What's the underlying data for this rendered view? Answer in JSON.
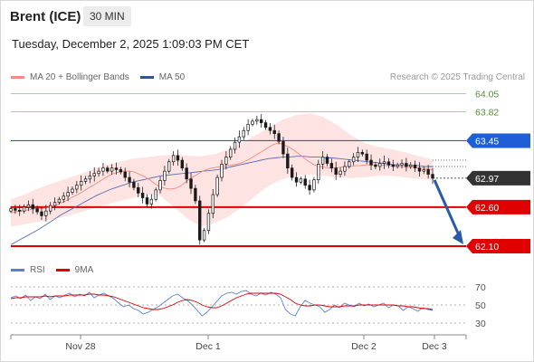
{
  "header": {
    "instrument": "Brent (ICE)",
    "timeframe": "30 MIN",
    "timestamp": "Tuesday, December 2, 2025 1:09:03 PM CET",
    "copyright": "Research © 2025 Trading Central"
  },
  "legend": {
    "items": [
      {
        "label": "MA 20 + Bollinger Bands",
        "color": "#f28b82"
      },
      {
        "label": "MA 50",
        "color": "#2f5597"
      }
    ],
    "rsi_items": [
      {
        "label": "RSI",
        "color": "#5b7fd6"
      },
      {
        "label": "9MA",
        "color": "#e00000"
      }
    ]
  },
  "chart_data": [
    {
      "type": "candlestick",
      "title": "Brent (ICE)",
      "ylim": [
        61.95,
        64.15
      ],
      "x_tick_labels": [
        "Nov 28",
        "Dec 1",
        "Dec 2",
        "Dec 3"
      ],
      "current_price": "62.97",
      "levels": [
        {
          "value": "64.05",
          "kind": "resistance-light",
          "color": "#8dc06a"
        },
        {
          "value": "63.82",
          "kind": "resistance-light",
          "color": "#8dc06a"
        },
        {
          "value": "63.45",
          "kind": "resistance",
          "color": "#1f5fd6"
        },
        {
          "value": "62.60",
          "kind": "support",
          "color": "#e00000"
        },
        {
          "value": "62.10",
          "kind": "support",
          "color": "#e00000"
        }
      ],
      "close_series": [
        62.58,
        62.56,
        62.55,
        62.6,
        62.63,
        62.58,
        62.54,
        62.49,
        62.55,
        62.62,
        62.66,
        62.7,
        62.74,
        62.79,
        62.83,
        62.88,
        62.93,
        62.96,
        63.0,
        63.03,
        63.06,
        63.1,
        63.06,
        63.1,
        63.08,
        63.05,
        62.98,
        62.92,
        62.85,
        62.78,
        62.72,
        62.64,
        62.7,
        62.82,
        62.94,
        63.06,
        63.18,
        63.26,
        63.2,
        63.1,
        62.96,
        62.84,
        62.68,
        62.18,
        62.3,
        62.52,
        62.76,
        62.98,
        63.15,
        63.24,
        63.34,
        63.43,
        63.5,
        63.58,
        63.66,
        63.7,
        63.72,
        63.68,
        63.62,
        63.58,
        63.54,
        63.44,
        63.28,
        63.1,
        62.98,
        62.92,
        62.96,
        62.88,
        62.82,
        62.95,
        63.15,
        63.24,
        63.16,
        63.1,
        63.02,
        63.06,
        63.12,
        63.18,
        63.24,
        63.3,
        63.28,
        63.2,
        63.14,
        63.12,
        63.16,
        63.18,
        63.14,
        63.12,
        63.14,
        63.16,
        63.12,
        63.14,
        63.1,
        63.06,
        63.08,
        63.02,
        62.97
      ],
      "ma20_series": [
        62.53,
        62.54,
        62.55,
        62.56,
        62.57,
        62.58,
        62.58,
        62.59,
        62.61,
        62.63,
        62.66,
        62.69,
        62.73,
        62.76,
        62.8,
        62.84,
        62.88,
        62.92,
        62.96,
        63.0,
        63.03,
        63.05,
        63.06,
        63.06,
        63.05,
        63.02,
        62.99,
        62.95,
        62.9,
        62.86,
        62.84,
        62.83,
        62.84,
        62.87,
        62.92,
        62.97,
        63.01,
        63.05,
        63.08,
        63.1,
        63.11,
        63.12,
        63.13,
        63.14,
        63.15,
        63.17,
        63.2,
        63.24,
        63.28,
        63.32,
        63.36,
        63.4,
        63.42,
        63.4,
        63.37,
        63.33,
        63.28,
        63.23,
        63.18,
        63.14,
        63.12,
        63.11,
        63.1,
        63.1,
        63.11,
        63.12,
        63.12,
        63.13,
        63.13,
        63.14,
        63.14,
        63.14,
        63.14,
        63.13,
        63.13,
        63.12,
        63.12,
        63.11,
        63.11,
        63.1,
        63.1,
        63.09,
        63.08
      ],
      "ma50_series": [
        62.12,
        62.17,
        62.22,
        62.27,
        62.32,
        62.38,
        62.44,
        62.5,
        62.55,
        62.6,
        62.65,
        62.7,
        62.75,
        62.79,
        62.83,
        62.86,
        62.89,
        62.92,
        62.94,
        62.96,
        62.98,
        63.0,
        63.01,
        63.02,
        63.03,
        63.04,
        63.05,
        63.06,
        63.07,
        63.08,
        63.1,
        63.12,
        63.14,
        63.16,
        63.18,
        63.2,
        63.22,
        63.23,
        63.24,
        63.24,
        63.25,
        63.25,
        63.24,
        63.24,
        63.23,
        63.23,
        63.22,
        63.21,
        63.2,
        63.19,
        63.18,
        63.17,
        63.16,
        63.15,
        63.14,
        63.14,
        63.13,
        63.13,
        63.12,
        63.12
      ],
      "bb_upper_series": [
        62.7,
        62.76,
        62.84,
        62.9,
        62.96,
        63.02,
        63.08,
        63.14,
        63.18,
        63.22,
        63.24,
        63.26,
        63.27,
        63.26,
        63.25,
        63.28,
        63.34,
        63.42,
        63.52,
        63.62,
        63.72,
        63.78,
        63.8,
        63.75,
        63.65,
        63.52,
        63.42,
        63.37,
        63.34,
        63.3,
        63.25,
        63.21
      ],
      "bb_lower_series": [
        62.35,
        62.38,
        62.41,
        62.44,
        62.48,
        62.53,
        62.58,
        62.63,
        62.68,
        62.72,
        62.76,
        62.74,
        62.6,
        62.45,
        62.35,
        62.4,
        62.48,
        62.6,
        62.75,
        62.88,
        62.96,
        63.0,
        63.02,
        63.0,
        62.98,
        62.97,
        62.98,
        63.0,
        63.0,
        62.98,
        62.96,
        62.95
      ],
      "forecast": {
        "from": "62.97",
        "to": "62.10"
      }
    },
    {
      "type": "line",
      "title": "RSI",
      "ylim": [
        25,
        75
      ],
      "y_tick_labels": [
        "70",
        "50",
        "30"
      ],
      "rsi_series": [
        58,
        60,
        57,
        61,
        55,
        59,
        57,
        62,
        56,
        60,
        58,
        61,
        63,
        59,
        62,
        60,
        64,
        58,
        61,
        63,
        60,
        57,
        52,
        48,
        50,
        46,
        44,
        40,
        42,
        45,
        48,
        52,
        56,
        60,
        62,
        58,
        55,
        50,
        44,
        38,
        42,
        48,
        54,
        60,
        63,
        64,
        62,
        65,
        66,
        62,
        60,
        63,
        61,
        64,
        62,
        58,
        45,
        40,
        38,
        48,
        55,
        52,
        50,
        48,
        42,
        45,
        50,
        47,
        52,
        50,
        48,
        52,
        49,
        51,
        48,
        50,
        52,
        47,
        50,
        49,
        44,
        48,
        46,
        43,
        47,
        45,
        44
      ],
      "rsi_ma_series": [
        57,
        58,
        58,
        59,
        59,
        59,
        59,
        60,
        59,
        60,
        60,
        60,
        61,
        61,
        61,
        61,
        62,
        62,
        61,
        61,
        60,
        59,
        57,
        55,
        53,
        51,
        49,
        47,
        46,
        45,
        45,
        46,
        48,
        50,
        53,
        55,
        56,
        55,
        53,
        50,
        48,
        47,
        47,
        49,
        52,
        55,
        58,
        60,
        62,
        63,
        63,
        63,
        63,
        63,
        63,
        62,
        59,
        56,
        52,
        50,
        49,
        49,
        50,
        50,
        49,
        48,
        48,
        48,
        49,
        49,
        49,
        50,
        50,
        50,
        50,
        50,
        50,
        50,
        50,
        49,
        49,
        48,
        48,
        47,
        46,
        46,
        45
      ]
    }
  ]
}
